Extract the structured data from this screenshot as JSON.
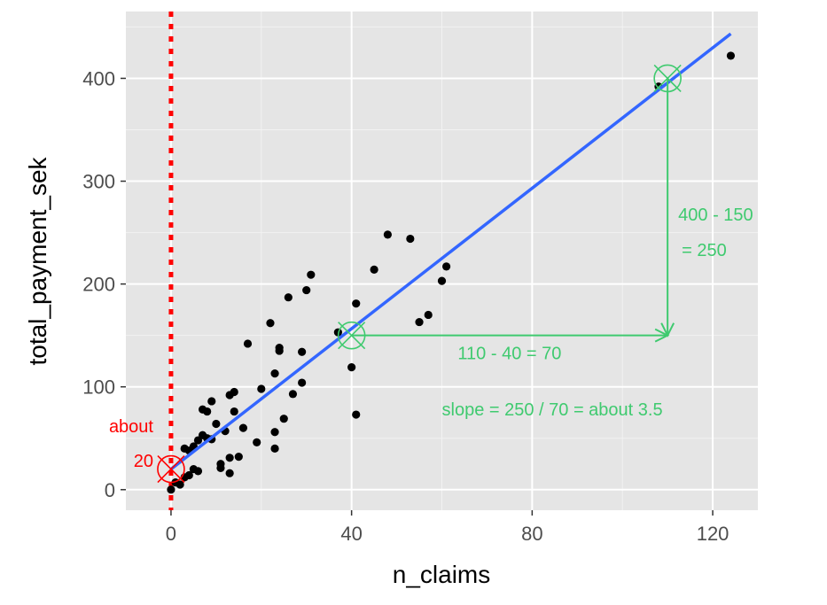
{
  "chart_data": {
    "type": "scatter",
    "title": "",
    "xlabel": "n_claims",
    "ylabel": "total_payment_sek",
    "xlim": [
      -10,
      130
    ],
    "ylim": [
      -20,
      465
    ],
    "x_ticks": [
      0,
      40,
      80,
      120
    ],
    "y_ticks": [
      0,
      100,
      200,
      300,
      400
    ],
    "grid": true,
    "background": "#e5e5e5",
    "points": [
      [
        0,
        0
      ],
      [
        1,
        7
      ],
      [
        2,
        5
      ],
      [
        3,
        12
      ],
      [
        4,
        14
      ],
      [
        5,
        20
      ],
      [
        6,
        18
      ],
      [
        3,
        40
      ],
      [
        4,
        38
      ],
      [
        5,
        42
      ],
      [
        6,
        48
      ],
      [
        7,
        53
      ],
      [
        8,
        50
      ],
      [
        7,
        78
      ],
      [
        8,
        76
      ],
      [
        9,
        86
      ],
      [
        9,
        49
      ],
      [
        10,
        64
      ],
      [
        11,
        25
      ],
      [
        11,
        21
      ],
      [
        12,
        57
      ],
      [
        13,
        31
      ],
      [
        13,
        16
      ],
      [
        13,
        92
      ],
      [
        14,
        95
      ],
      [
        14,
        76
      ],
      [
        15,
        32
      ],
      [
        16,
        60
      ],
      [
        17,
        142
      ],
      [
        19,
        46
      ],
      [
        20,
        98
      ],
      [
        22,
        162
      ],
      [
        23,
        40
      ],
      [
        23,
        56
      ],
      [
        23,
        113
      ],
      [
        24,
        135
      ],
      [
        24,
        138
      ],
      [
        25,
        69
      ],
      [
        26,
        187
      ],
      [
        27,
        93
      ],
      [
        29,
        104
      ],
      [
        29,
        134
      ],
      [
        30,
        194
      ],
      [
        31,
        209
      ],
      [
        37,
        153
      ],
      [
        40,
        119
      ],
      [
        41,
        181
      ],
      [
        41,
        73
      ],
      [
        45,
        214
      ],
      [
        48,
        248
      ],
      [
        53,
        244
      ],
      [
        55,
        163
      ],
      [
        57,
        170
      ],
      [
        60,
        203
      ],
      [
        61,
        217
      ],
      [
        108,
        392
      ],
      [
        124,
        422
      ]
    ],
    "trend_line": {
      "x": [
        0,
        124
      ],
      "y": [
        19.99,
        443.4
      ]
    },
    "colors": {
      "points": "#000000",
      "trend_line": "#3366ff",
      "annotation_green": "#3fca6f",
      "annotation_red": "#ff0000"
    },
    "annotations": {
      "intercept_marker": {
        "x": 0,
        "y": 20
      },
      "intercept_label_1": "about",
      "intercept_label_2": "20",
      "vertical_reference_x": 0,
      "point_a": {
        "x": 40,
        "y": 150
      },
      "point_b": {
        "x": 110,
        "y": 400
      },
      "run_label": "110 - 40 = 70",
      "rise_label_1": "400 - 150",
      "rise_label_2": "= 250",
      "slope_label": "slope = 250 / 70 = about 3.5"
    }
  }
}
